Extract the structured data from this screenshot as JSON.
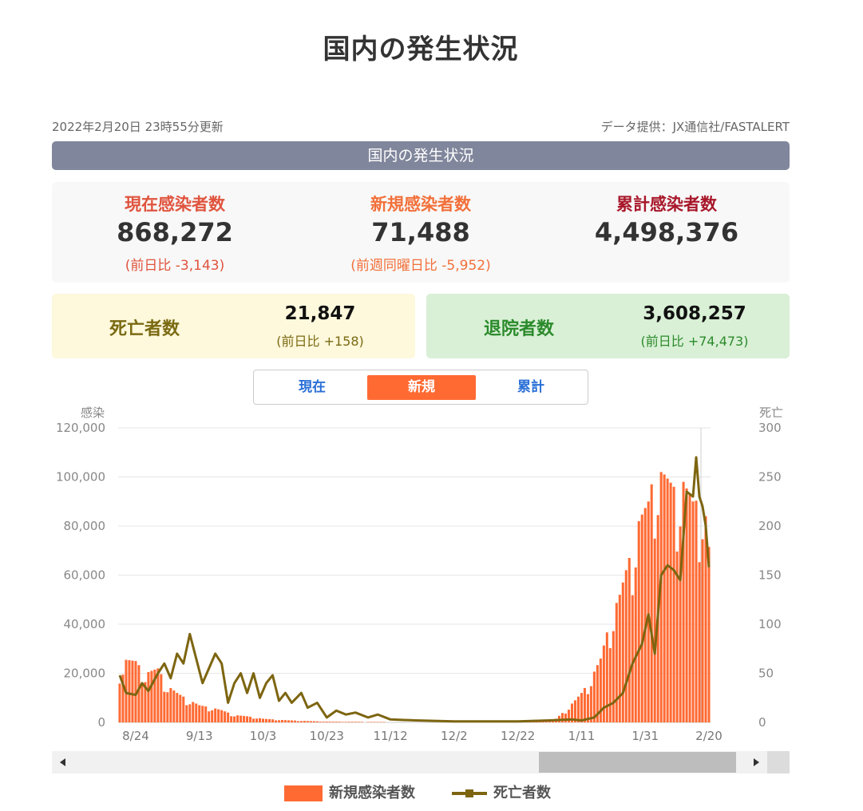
{
  "page": {
    "title": "国内の発生状況"
  },
  "meta": {
    "updated": "2022年2月20日 23時55分更新",
    "source": "データ提供：JX通信社/FASTALERT"
  },
  "section_title": "国内の発生状況",
  "stats": [
    {
      "label": "現在感染者数",
      "value": "868,272",
      "sub": "(前日比 -3,143)",
      "color": "#e0543e"
    },
    {
      "label": "新規感染者数",
      "value": "71,488",
      "sub": "(前週同曜日比 -5,952)",
      "color": "#f2703a"
    },
    {
      "label": "累計感染者数",
      "value": "4,498,376",
      "sub": "",
      "color": "#a8172a"
    }
  ],
  "deaths": {
    "label": "死亡者数",
    "value": "21,847",
    "sub": "(前日比 +158)",
    "color": "#7a6a12"
  },
  "recovered": {
    "label": "退院者数",
    "value": "3,608,257",
    "sub": "(前日比 +74,473)",
    "color": "#2b8a2b"
  },
  "tabs": [
    "現在",
    "新規",
    "累計"
  ],
  "active_tab": "新規",
  "legend": {
    "bar_label": "新規感染者数",
    "line_label": "死亡者数"
  },
  "colors": {
    "bar": "#ff6a33",
    "line": "#7d6510",
    "accent": "#ff6a33",
    "link": "#2a6fd6"
  },
  "chart_data": {
    "type": "bar+line",
    "y_left_label": "感染",
    "y_right_label": "死亡",
    "y_left_ticks": [
      "120,000",
      "100,000",
      "80,000",
      "60,000",
      "40,000",
      "20,000",
      "0"
    ],
    "y_right_ticks": [
      "300",
      "250",
      "200",
      "150",
      "100",
      "50",
      "0"
    ],
    "y_left_range": [
      0,
      120000
    ],
    "y_right_range": [
      0,
      300
    ],
    "x_ticks": [
      "8/24",
      "9/13",
      "10/3",
      "10/23",
      "11/12",
      "12/2",
      "12/22",
      "1/11",
      "1/31",
      "2/20"
    ],
    "date_range": [
      "8/19",
      "2/20"
    ],
    "grid": true,
    "series": [
      {
        "name": "新規感染者数",
        "type": "bar",
        "axis": "left",
        "anchors": [
          [
            "8/19",
            22000
          ],
          [
            "8/21",
            25500
          ],
          [
            "8/24",
            25000
          ],
          [
            "8/27",
            20000
          ],
          [
            "8/31",
            22000
          ],
          [
            "9/3",
            15000
          ],
          [
            "9/6",
            12000
          ],
          [
            "9/10",
            9000
          ],
          [
            "9/13",
            7000
          ],
          [
            "9/17",
            6000
          ],
          [
            "9/20",
            5000
          ],
          [
            "9/24",
            3000
          ],
          [
            "9/28",
            2500
          ],
          [
            "10/3",
            1500
          ],
          [
            "10/10",
            900
          ],
          [
            "10/23",
            300
          ],
          [
            "11/12",
            150
          ],
          [
            "12/2",
            120
          ],
          [
            "12/22",
            150
          ],
          [
            "12/31",
            500
          ],
          [
            "1/3",
            1500
          ],
          [
            "1/6",
            5000
          ],
          [
            "1/9",
            9000
          ],
          [
            "1/11",
            12000
          ],
          [
            "1/14",
            18000
          ],
          [
            "1/17",
            26000
          ],
          [
            "1/20",
            42000
          ],
          [
            "1/23",
            52000
          ],
          [
            "1/26",
            67000
          ],
          [
            "1/29",
            82000
          ],
          [
            "2/1",
            90000
          ],
          [
            "2/3",
            104000
          ],
          [
            "2/6",
            101000
          ],
          [
            "2/9",
            96000
          ],
          [
            "2/12",
            98000
          ],
          [
            "2/15",
            90000
          ],
          [
            "2/18",
            91000
          ],
          [
            "2/19",
            84000
          ],
          [
            "2/20",
            71488
          ]
        ]
      },
      {
        "name": "死亡者数",
        "type": "line",
        "axis": "right",
        "values": [
          [
            "8/19",
            48
          ],
          [
            "8/21",
            30
          ],
          [
            "8/24",
            28
          ],
          [
            "8/26",
            40
          ],
          [
            "8/28",
            32
          ],
          [
            "8/31",
            50
          ],
          [
            "9/2",
            60
          ],
          [
            "9/4",
            45
          ],
          [
            "9/6",
            70
          ],
          [
            "9/8",
            60
          ],
          [
            "9/10",
            90
          ],
          [
            "9/12",
            65
          ],
          [
            "9/14",
            40
          ],
          [
            "9/16",
            55
          ],
          [
            "9/18",
            70
          ],
          [
            "9/20",
            60
          ],
          [
            "9/22",
            20
          ],
          [
            "9/24",
            40
          ],
          [
            "9/26",
            50
          ],
          [
            "9/28",
            30
          ],
          [
            "9/30",
            50
          ],
          [
            "10/2",
            25
          ],
          [
            "10/4",
            40
          ],
          [
            "10/6",
            48
          ],
          [
            "10/8",
            22
          ],
          [
            "10/10",
            30
          ],
          [
            "10/12",
            20
          ],
          [
            "10/15",
            30
          ],
          [
            "10/17",
            15
          ],
          [
            "10/20",
            20
          ],
          [
            "10/23",
            5
          ],
          [
            "10/26",
            12
          ],
          [
            "10/29",
            8
          ],
          [
            "11/1",
            10
          ],
          [
            "11/5",
            5
          ],
          [
            "11/8",
            8
          ],
          [
            "11/12",
            3
          ],
          [
            "11/20",
            2
          ],
          [
            "12/2",
            1
          ],
          [
            "12/12",
            1
          ],
          [
            "12/22",
            1
          ],
          [
            "1/1",
            2
          ],
          [
            "1/8",
            3
          ],
          [
            "1/11",
            2
          ],
          [
            "1/15",
            5
          ],
          [
            "1/18",
            15
          ],
          [
            "1/21",
            20
          ],
          [
            "1/24",
            30
          ],
          [
            "1/27",
            60
          ],
          [
            "1/30",
            80
          ],
          [
            "2/1",
            110
          ],
          [
            "2/3",
            70
          ],
          [
            "2/5",
            150
          ],
          [
            "2/7",
            160
          ],
          [
            "2/9",
            155
          ],
          [
            "2/11",
            145
          ],
          [
            "2/13",
            235
          ],
          [
            "2/15",
            230
          ],
          [
            "2/16",
            270
          ],
          [
            "2/17",
            230
          ],
          [
            "2/18",
            220
          ],
          [
            "2/19",
            200
          ],
          [
            "2/20",
            158
          ]
        ]
      }
    ]
  }
}
